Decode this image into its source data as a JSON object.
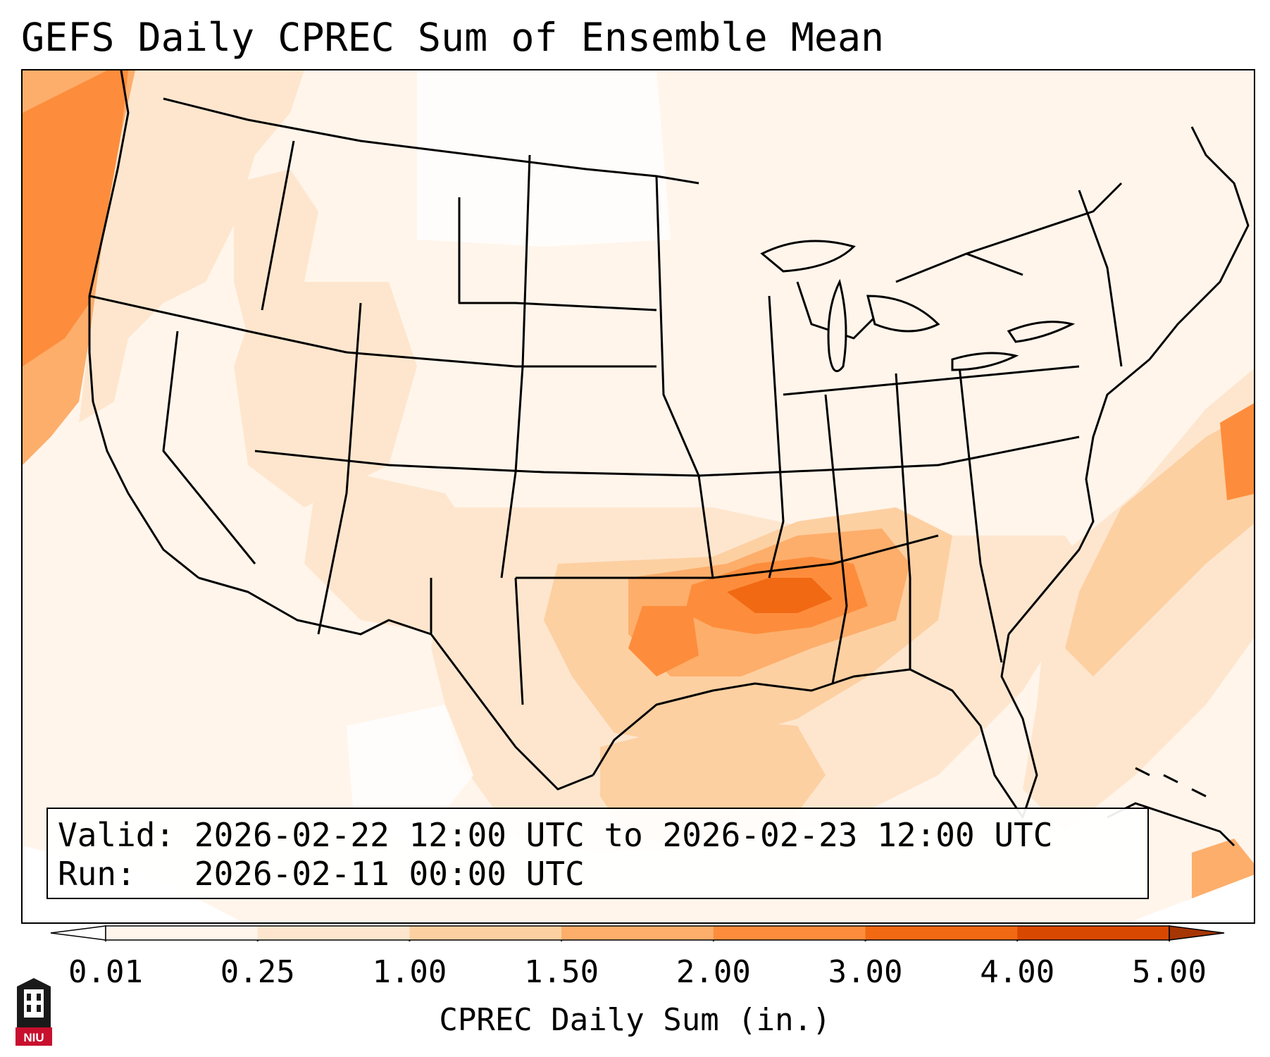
{
  "title": "GEFS Daily CPREC Sum of Ensemble Mean",
  "info": {
    "valid_label": "Valid:",
    "valid_value": "2026-02-22 12:00 UTC to 2026-02-23 12:00 UTC",
    "run_label": "Run:",
    "run_value": "2026-02-11 00:00 UTC"
  },
  "colorbar": {
    "label": "CPREC Daily Sum (in.)",
    "ticks": [
      "0.01",
      "0.25",
      "1.00",
      "1.50",
      "2.00",
      "3.00",
      "4.00",
      "5.00"
    ],
    "colors": [
      "#fff5eb",
      "#fee6ce",
      "#fdd0a2",
      "#fdae6b",
      "#fd8d3c",
      "#f16913",
      "#d94801",
      "#a63603"
    ],
    "extend": "both"
  },
  "logo": {
    "text": "NIU",
    "icon": "niu-tower-logo-icon",
    "colors": [
      "#c8102e",
      "#1a1a1a"
    ]
  }
}
